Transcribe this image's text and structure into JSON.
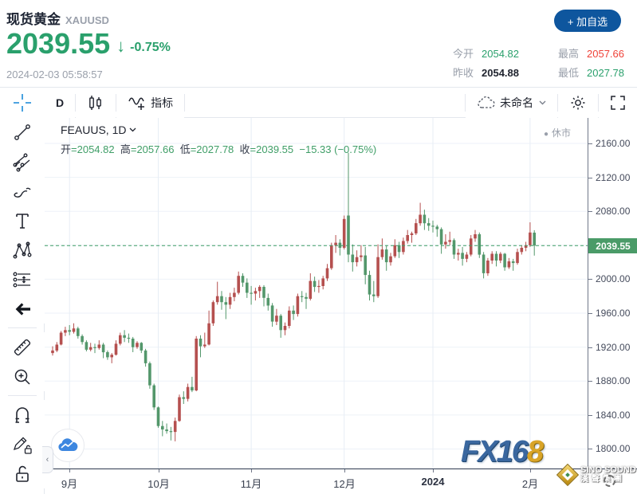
{
  "header": {
    "title": "现货黄金",
    "symbol": "XAUUSD",
    "price": "2039.55",
    "arrow": "↓",
    "change_percent": "-0.75%",
    "datetime": "2024-02-03 05:58:57",
    "stats": {
      "open_label": "今开",
      "open": "2054.82",
      "prev_close_label": "昨收",
      "prev_close": "2054.88",
      "high_label": "最高",
      "high": "2057.66",
      "low_label": "最低",
      "low": "2027.78"
    },
    "watchlist_button": "+ 加自选"
  },
  "toolbar": {
    "interval": "D",
    "indicators_label": "指标",
    "layout_name": "未命名"
  },
  "sidebar": {
    "tools": [
      "crosshair",
      "trend-line",
      "fib-retracement",
      "brush",
      "text",
      "xabcd-pattern",
      "long-position",
      "back-arrow",
      "ruler",
      "zoom-in",
      "magnet",
      "drawing-lock",
      "lock-all"
    ]
  },
  "chart": {
    "legend_symbol": "FEAUUS, 1D",
    "market_status": "休市",
    "status_dot": "●",
    "ohlc": {
      "o_label": "开",
      "o": "2054.82",
      "h_label": "高",
      "h": "2057.66",
      "l_label": "低",
      "l": "2027.78",
      "c_label": "收",
      "c": "2039.55",
      "change": "−15.33 (−0.75%)"
    },
    "price_badge": "2039.55"
  },
  "watermarks": {
    "fx_blue": "FX16",
    "fx_gold": "8",
    "sino_line1": "SINO SOUND",
    "sino_line2": "漢聲集團"
  },
  "colors": {
    "accent_green": "#2aa06c",
    "accent_red": "#ef4238",
    "value_dark": "#20242f",
    "candle_up_red": "#b5504f",
    "candle_down_green": "#53976b",
    "badge_green": "#4a9b68",
    "price_line_green": "#3f9e67",
    "grid": "#edf2f8",
    "button_blue": "#0e569e",
    "crosshair_blue": "#3598dd"
  },
  "chart_data": {
    "type": "candlestick",
    "title": "FEAUUS, 1D",
    "note": "XAUUSD daily candles Aug 28 2023 - Feb 2 2024, Chinese convention: red=up, green=down",
    "ylim": [
      1777,
      2190
    ],
    "yticks": [
      2160,
      2120,
      2080,
      2040,
      2000,
      1960,
      1920,
      1880,
      1840,
      1800
    ],
    "ytick_labels": [
      "2160.00",
      "2120.00",
      "2080.00",
      "2040.00",
      "2000.00",
      "1960.00",
      "1920.00",
      "1880.00",
      "1840.00",
      "1800.00"
    ],
    "hidden_ytick": 2040,
    "last_close": 2039.55,
    "month_ticks": [
      {
        "label": "9月",
        "index": 4,
        "bold": false
      },
      {
        "label": "10月",
        "index": 25,
        "bold": false
      },
      {
        "label": "11月",
        "index": 47,
        "bold": false
      },
      {
        "label": "12月",
        "index": 69,
        "bold": false
      },
      {
        "label": "2024",
        "index": 90,
        "bold": true
      },
      {
        "label": "2月",
        "index": 113,
        "bold": false
      }
    ],
    "series_format": [
      "open",
      "high",
      "low",
      "close"
    ],
    "series": [
      [
        1913,
        1921,
        1910,
        1916
      ],
      [
        1916,
        1926,
        1914,
        1923
      ],
      [
        1923,
        1939,
        1922,
        1937
      ],
      [
        1937,
        1944,
        1933,
        1940
      ],
      [
        1940,
        1946,
        1934,
        1938
      ],
      [
        1938,
        1948,
        1936,
        1942
      ],
      [
        1942,
        1944,
        1930,
        1933
      ],
      [
        1933,
        1935,
        1923,
        1926
      ],
      [
        1926,
        1928,
        1915,
        1917
      ],
      [
        1917,
        1925,
        1915,
        1920
      ],
      [
        1920,
        1924,
        1913,
        1919
      ],
      [
        1919,
        1928,
        1917,
        1923
      ],
      [
        1923,
        1925,
        1907,
        1914
      ],
      [
        1914,
        1916,
        1905,
        1908
      ],
      [
        1908,
        1913,
        1901,
        1911
      ],
      [
        1911,
        1928,
        1910,
        1924
      ],
      [
        1924,
        1937,
        1922,
        1934
      ],
      [
        1934,
        1940,
        1926,
        1931
      ],
      [
        1931,
        1936,
        1925,
        1930
      ],
      [
        1930,
        1932,
        1914,
        1920
      ],
      [
        1920,
        1927,
        1918,
        1925
      ],
      [
        1925,
        1926,
        1913,
        1916
      ],
      [
        1916,
        1918,
        1897,
        1901
      ],
      [
        1901,
        1903,
        1871,
        1875
      ],
      [
        1875,
        1877,
        1846,
        1849
      ],
      [
        1849,
        1850,
        1825,
        1827
      ],
      [
        1827,
        1833,
        1815,
        1823
      ],
      [
        1823,
        1830,
        1818,
        1821
      ],
      [
        1821,
        1826,
        1810,
        1820
      ],
      [
        1820,
        1837,
        1809,
        1833
      ],
      [
        1833,
        1864,
        1832,
        1861
      ],
      [
        1861,
        1868,
        1853,
        1859
      ],
      [
        1859,
        1877,
        1856,
        1873
      ],
      [
        1873,
        1885,
        1867,
        1869
      ],
      [
        1869,
        1933,
        1868,
        1930
      ],
      [
        1930,
        1934,
        1908,
        1921
      ],
      [
        1921,
        1937,
        1919,
        1923
      ],
      [
        1923,
        1963,
        1922,
        1948
      ],
      [
        1948,
        1975,
        1945,
        1973
      ],
      [
        1973,
        1997,
        1970,
        1980
      ],
      [
        1980,
        1986,
        1964,
        1973
      ],
      [
        1973,
        1979,
        1953,
        1970
      ],
      [
        1970,
        1984,
        1965,
        1979
      ],
      [
        1979,
        1990,
        1974,
        1984
      ],
      [
        1984,
        2009,
        1982,
        2004
      ],
      [
        2004,
        2007,
        1991,
        1996
      ],
      [
        1996,
        2001,
        1978,
        1984
      ],
      [
        1984,
        1992,
        1970,
        1983
      ],
      [
        1983,
        1990,
        1975,
        1986
      ],
      [
        1986,
        1993,
        1978,
        1991
      ],
      [
        1991,
        1993,
        1968,
        1978
      ],
      [
        1978,
        1983,
        1963,
        1969
      ],
      [
        1969,
        1972,
        1944,
        1950
      ],
      [
        1950,
        1965,
        1946,
        1957
      ],
      [
        1957,
        1959,
        1931,
        1940
      ],
      [
        1940,
        1949,
        1934,
        1945
      ],
      [
        1945,
        1968,
        1942,
        1963
      ],
      [
        1963,
        1969,
        1952,
        1959
      ],
      [
        1959,
        1983,
        1956,
        1980
      ],
      [
        1980,
        1986,
        1973,
        1979
      ],
      [
        1979,
        1984,
        1965,
        1977
      ],
      [
        1977,
        2007,
        1975,
        1998
      ],
      [
        1998,
        2003,
        1985,
        1991
      ],
      [
        1991,
        1999,
        1984,
        1992
      ],
      [
        1992,
        2004,
        1988,
        2001
      ],
      [
        2001,
        2018,
        1998,
        2013
      ],
      [
        2013,
        2043,
        2011,
        2040
      ],
      [
        2040,
        2052,
        2031,
        2043
      ],
      [
        2043,
        2047,
        2028,
        2037
      ],
      [
        2037,
        2075,
        2035,
        2071
      ],
      [
        2075,
        2149,
        2020,
        2029
      ],
      [
        2029,
        2041,
        2009,
        2020
      ],
      [
        2020,
        2034,
        2015,
        2026
      ],
      [
        2026,
        2040,
        2021,
        2028
      ],
      [
        2028,
        2038,
        1994,
        2005
      ],
      [
        2005,
        2010,
        1975,
        1982
      ],
      [
        1982,
        1998,
        1973,
        1980
      ],
      [
        1980,
        2041,
        1978,
        2026
      ],
      [
        2026,
        2048,
        2023,
        2035
      ],
      [
        2035,
        2040,
        2010,
        2020
      ],
      [
        2020,
        2031,
        2016,
        2027
      ],
      [
        2027,
        2047,
        2025,
        2040
      ],
      [
        2040,
        2044,
        2025,
        2032
      ],
      [
        2032,
        2049,
        2029,
        2045
      ],
      [
        2045,
        2058,
        2042,
        2052
      ],
      [
        2052,
        2056,
        2043,
        2054
      ],
      [
        2054,
        2071,
        2052,
        2066
      ],
      [
        2066,
        2090,
        2063,
        2076
      ],
      [
        2076,
        2082,
        2058,
        2066
      ],
      [
        2066,
        2072,
        2057,
        2063
      ],
      [
        2063,
        2069,
        2055,
        2062
      ],
      [
        2062,
        2064,
        2050,
        2059
      ],
      [
        2059,
        2061,
        2030,
        2041
      ],
      [
        2041,
        2053,
        2036,
        2044
      ],
      [
        2044,
        2056,
        2040,
        2046
      ],
      [
        2046,
        2048,
        2024,
        2029
      ],
      [
        2029,
        2036,
        2022,
        2031
      ],
      [
        2031,
        2038,
        2016,
        2024
      ],
      [
        2024,
        2032,
        2020,
        2029
      ],
      [
        2029,
        2052,
        2027,
        2048
      ],
      [
        2048,
        2058,
        2044,
        2053
      ],
      [
        2053,
        2055,
        2025,
        2029
      ],
      [
        2029,
        2032,
        2001,
        2007
      ],
      [
        2007,
        2025,
        2004,
        2022
      ],
      [
        2022,
        2033,
        2018,
        2030
      ],
      [
        2030,
        2033,
        2015,
        2022
      ],
      [
        2022,
        2032,
        2019,
        2030
      ],
      [
        2030,
        2031,
        2010,
        2014
      ],
      [
        2014,
        2025,
        2012,
        2021
      ],
      [
        2021,
        2024,
        2010,
        2019
      ],
      [
        2019,
        2036,
        2017,
        2032
      ],
      [
        2032,
        2040,
        2029,
        2037
      ],
      [
        2037,
        2044,
        2033,
        2040
      ],
      [
        2040,
        2067,
        2038,
        2055
      ],
      [
        2054.8,
        2057.7,
        2027.8,
        2039.55
      ]
    ]
  }
}
